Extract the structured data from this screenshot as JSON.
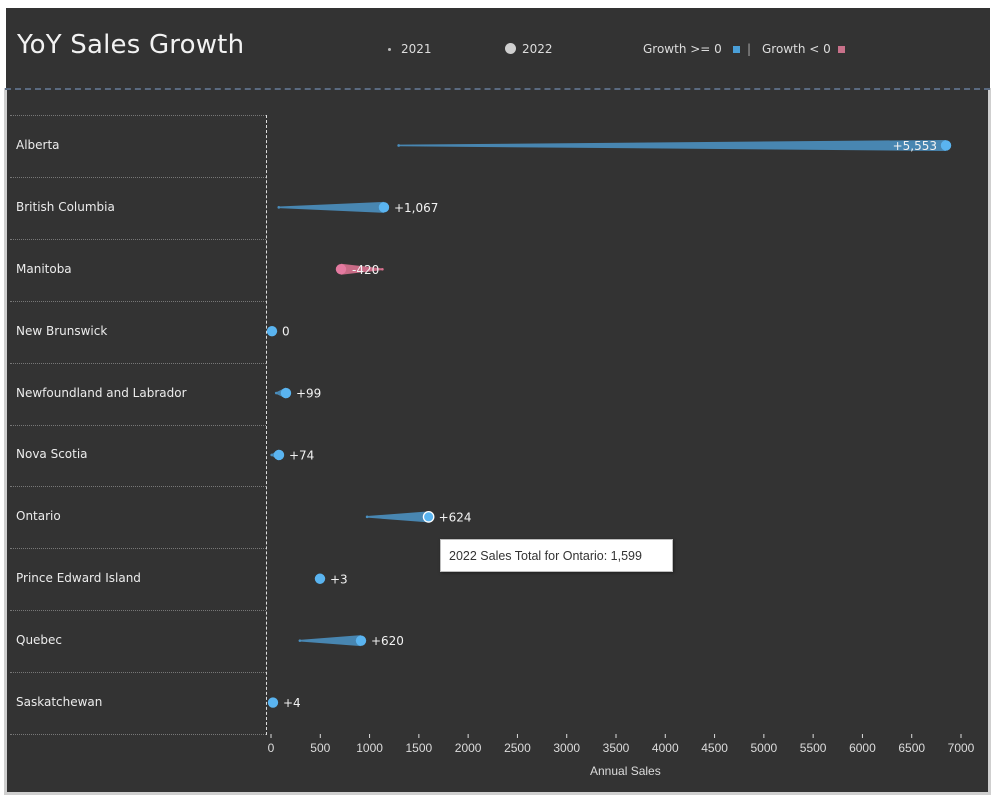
{
  "header": {
    "title": "YoY Sales Growth",
    "legend": {
      "year_prev": "2021",
      "year_curr": "2022",
      "growth_pos": "Growth >= 0",
      "separator": "|",
      "growth_neg": "Growth < 0"
    }
  },
  "colors": {
    "background": "#333333",
    "positive": "#4a9fd8",
    "positive_dot": "#5ab4f0",
    "positive_band": "#4a8fbf",
    "negative": "#d8718f",
    "negative_dot": "#e47aa0",
    "text": "#f2f2f2"
  },
  "tooltip": {
    "text": "2022 Sales Total for Ontario: 1,599"
  },
  "chart_data": {
    "type": "scatter",
    "title": "YoY Sales Growth",
    "xlabel": "Annual Sales",
    "ylabel": "",
    "xlim": [
      0,
      7000
    ],
    "xticks": [
      0,
      500,
      1000,
      1500,
      2000,
      2500,
      3000,
      3500,
      4000,
      4500,
      5000,
      5500,
      6000,
      6500,
      7000
    ],
    "grid": false,
    "legend": "top-right",
    "categories": [
      "Alberta",
      "British Columbia",
      "Manitoba",
      "New Brunswick",
      "Newfoundland and Labrador",
      "Nova Scotia",
      "Ontario",
      "Prince Edward Island",
      "Quebec",
      "Saskatchewan"
    ],
    "series": [
      {
        "name": "2021",
        "values": [
          1295,
          79,
          1130,
          10,
          53,
          7,
          975,
          494,
          293,
          16
        ]
      },
      {
        "name": "2022",
        "values": [
          6848,
          1146,
          710,
          10,
          152,
          81,
          1599,
          497,
          913,
          20
        ]
      }
    ],
    "growth_labels": [
      "+5,553",
      "+1,067",
      "-420",
      "0",
      "+99",
      "+74",
      "+624",
      "+3",
      "+620",
      "+4"
    ],
    "growth": [
      5553,
      1067,
      -420,
      0,
      99,
      74,
      624,
      3,
      620,
      4
    ],
    "highlighted": "Ontario"
  }
}
